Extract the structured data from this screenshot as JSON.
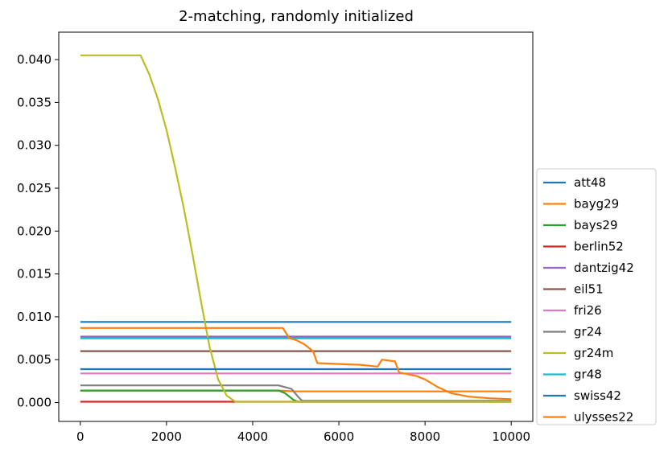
{
  "chart_data": {
    "type": "line",
    "title": "2-matching, randomly initialized",
    "xlabel": "",
    "ylabel": "",
    "xlim": [
      -500,
      10500
    ],
    "ylim": [
      -0.0022,
      0.0432
    ],
    "xticks": [
      0,
      2000,
      4000,
      6000,
      8000,
      10000
    ],
    "xtick_labels": [
      "0",
      "2000",
      "4000",
      "6000",
      "8000",
      "10000"
    ],
    "yticks": [
      0.0,
      0.005,
      0.01,
      0.015,
      0.02,
      0.025,
      0.03,
      0.035,
      0.04
    ],
    "ytick_labels": [
      "0.000",
      "0.005",
      "0.010",
      "0.015",
      "0.020",
      "0.025",
      "0.030",
      "0.035",
      "0.040"
    ],
    "grid": false,
    "legend_position": "outside-right",
    "series": [
      {
        "name": "att48",
        "color": "#1f77b4",
        "points": [
          [
            0,
            0.0094
          ],
          [
            10000,
            0.0094
          ]
        ]
      },
      {
        "name": "bayg29",
        "color": "#ff7f0e",
        "points": [
          [
            0,
            0.0014
          ],
          [
            4600,
            0.0014
          ],
          [
            5000,
            0.0013
          ],
          [
            10000,
            0.0013
          ]
        ]
      },
      {
        "name": "bays29",
        "color": "#2ca02c",
        "points": [
          [
            0,
            0.0014
          ],
          [
            4600,
            0.0014
          ],
          [
            4750,
            0.0011
          ],
          [
            4850,
            0.0007
          ],
          [
            4950,
            0.0003
          ],
          [
            5050,
            0.0001
          ],
          [
            10000,
            0.0001
          ]
        ]
      },
      {
        "name": "berlin52",
        "color": "#d62728",
        "points": [
          [
            0,
            0.0001
          ],
          [
            10000,
            0.0001
          ]
        ]
      },
      {
        "name": "dantzig42",
        "color": "#9467bd",
        "points": [
          [
            0,
            0.0077
          ],
          [
            10000,
            0.0077
          ]
        ]
      },
      {
        "name": "eil51",
        "color": "#8c564b",
        "points": [
          [
            0,
            0.006
          ],
          [
            10000,
            0.006
          ]
        ]
      },
      {
        "name": "fri26",
        "color": "#e377c2",
        "points": [
          [
            0,
            0.0034
          ],
          [
            10000,
            0.0034
          ]
        ]
      },
      {
        "name": "gr24",
        "color": "#7f7f7f",
        "points": [
          [
            0,
            0.002
          ],
          [
            4600,
            0.002
          ],
          [
            4900,
            0.0016
          ],
          [
            5050,
            0.0007
          ],
          [
            5150,
            0.0002
          ],
          [
            10000,
            0.0002
          ]
        ]
      },
      {
        "name": "gr24m",
        "color": "#bcbd22",
        "points": [
          [
            0,
            0.0405
          ],
          [
            1400,
            0.0405
          ],
          [
            1600,
            0.0383
          ],
          [
            1800,
            0.0354
          ],
          [
            2000,
            0.0318
          ],
          [
            2200,
            0.0274
          ],
          [
            2400,
            0.0227
          ],
          [
            2600,
            0.0174
          ],
          [
            2800,
            0.0118
          ],
          [
            3000,
            0.0065
          ],
          [
            3200,
            0.0027
          ],
          [
            3400,
            0.0008
          ],
          [
            3600,
            0.0001
          ],
          [
            10000,
            0.0001
          ]
        ]
      },
      {
        "name": "gr48",
        "color": "#17becf",
        "points": [
          [
            0,
            0.0075
          ],
          [
            10000,
            0.0075
          ]
        ]
      },
      {
        "name": "swiss42",
        "color": "#1f77b4",
        "points": [
          [
            0,
            0.0039
          ],
          [
            10000,
            0.0039
          ]
        ]
      },
      {
        "name": "ulysses22",
        "color": "#ff7f0e",
        "points": [
          [
            0,
            0.0087
          ],
          [
            4700,
            0.0087
          ],
          [
            4850,
            0.0075
          ],
          [
            5000,
            0.0073
          ],
          [
            5200,
            0.0068
          ],
          [
            5400,
            0.006
          ],
          [
            5500,
            0.0046
          ],
          [
            6000,
            0.0045
          ],
          [
            6500,
            0.0044
          ],
          [
            6900,
            0.0042
          ],
          [
            7000,
            0.005
          ],
          [
            7300,
            0.0048
          ],
          [
            7400,
            0.0035
          ],
          [
            7800,
            0.0031
          ],
          [
            8000,
            0.0027
          ],
          [
            8300,
            0.0018
          ],
          [
            8600,
            0.0011
          ],
          [
            9000,
            0.0007
          ],
          [
            9500,
            0.0005
          ],
          [
            10000,
            0.0004
          ]
        ]
      }
    ]
  }
}
